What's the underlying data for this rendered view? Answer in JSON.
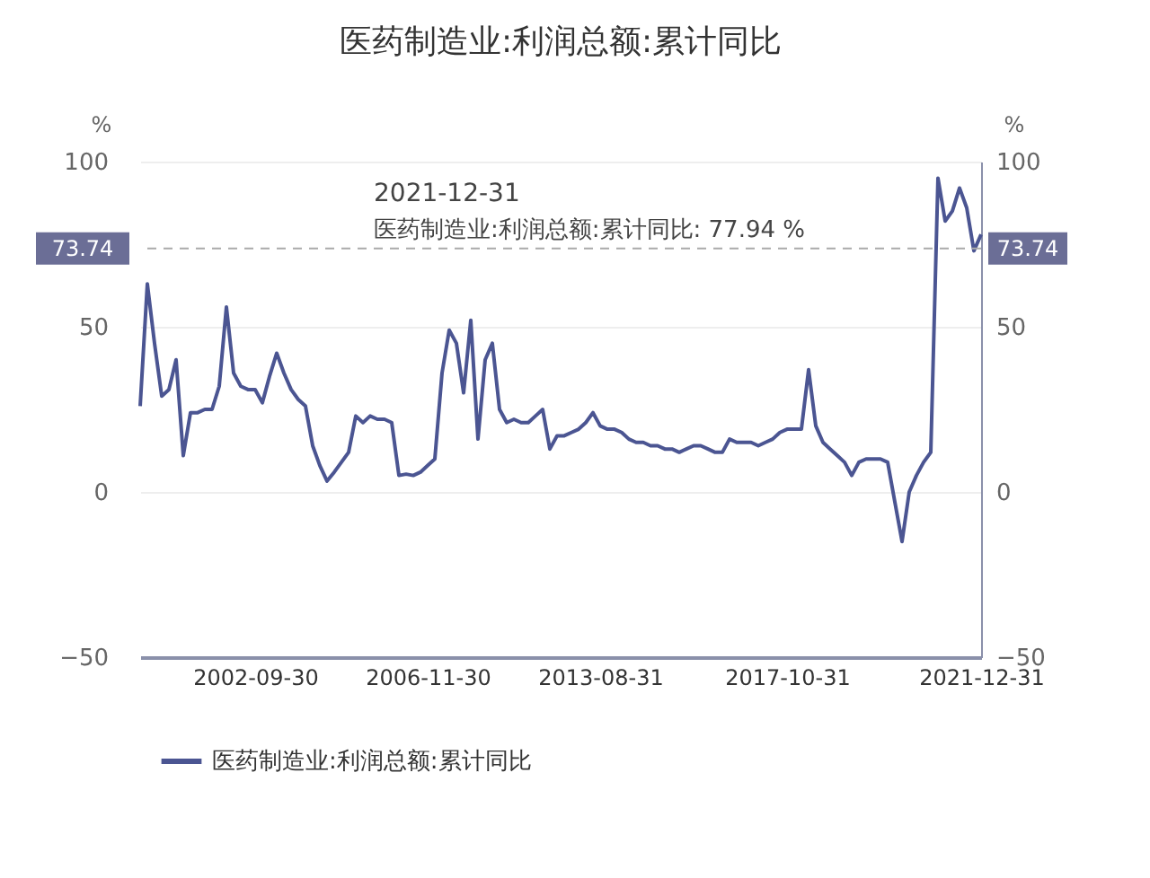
{
  "chart_data": {
    "type": "line",
    "title": "医药制造业:利润总额:累计同比",
    "categories": [
      null,
      null,
      null,
      null,
      null,
      null,
      null,
      null,
      null,
      null,
      null,
      null,
      null,
      null,
      null,
      null,
      "2002-09-30",
      null,
      null,
      null,
      null,
      null,
      null,
      null,
      null,
      null,
      null,
      null,
      null,
      null,
      null,
      null,
      null,
      null,
      null,
      null,
      null,
      null,
      null,
      null,
      "2006-11-30",
      null,
      null,
      null,
      null,
      null,
      null,
      null,
      null,
      null,
      null,
      null,
      null,
      null,
      null,
      null,
      null,
      null,
      null,
      null,
      null,
      null,
      null,
      null,
      "2013-08-31",
      null,
      null,
      null,
      null,
      null,
      null,
      null,
      null,
      null,
      null,
      null,
      null,
      null,
      null,
      null,
      null,
      null,
      null,
      null,
      null,
      null,
      null,
      null,
      null,
      null,
      "2017-10-31",
      null,
      null,
      null,
      null,
      null,
      null,
      null,
      null,
      null,
      null,
      null,
      null,
      null,
      null,
      null,
      null,
      null,
      null,
      null,
      null,
      null,
      null,
      null,
      null,
      null,
      null,
      "2021-12-31"
    ],
    "series": [
      {
        "name": "医药制造业:利润总额:累计同比",
        "color": "#4b5592",
        "values": [
          26,
          63,
          45,
          29,
          31,
          40,
          11,
          24,
          24,
          25,
          25,
          32,
          56,
          36,
          32,
          31,
          31,
          27,
          35,
          42,
          36,
          31,
          28,
          26,
          14,
          8,
          3.3,
          6,
          9,
          12,
          23,
          21,
          23,
          22,
          22,
          21,
          5,
          5.4,
          5,
          6,
          8,
          10,
          36,
          49,
          45,
          30,
          52,
          16,
          40,
          45,
          25,
          21,
          22,
          21,
          21,
          23,
          25,
          13,
          17,
          17,
          18,
          19,
          21,
          24,
          20,
          19,
          19,
          18,
          16,
          15,
          15,
          14,
          14,
          13,
          13,
          12,
          13,
          14,
          14,
          13,
          12,
          12,
          16,
          15,
          15,
          15,
          14,
          15,
          16,
          18,
          19,
          19,
          19,
          37,
          20,
          15,
          13,
          11,
          9,
          5,
          9,
          10,
          10,
          10,
          9,
          -3,
          -15,
          0,
          5,
          9,
          12,
          95,
          82,
          85,
          92,
          86,
          73,
          77.94
        ]
      }
    ],
    "ylabel": "%",
    "y2label": "%",
    "ylim": [
      -50,
      100
    ],
    "yticks": [
      -50,
      0,
      50,
      100
    ],
    "y2lim": [
      -50,
      100
    ],
    "y2ticks": [
      -50,
      0,
      50,
      100
    ],
    "ref_lines": [
      {
        "axis": "y2",
        "value": 73.74,
        "label": "73.74",
        "color": "#aaaaaa",
        "line_style": "dashed"
      }
    ],
    "annotations": [
      "2021-12-31",
      "医药制造业:利润总额:累计同比:  77.94 %"
    ],
    "grid": "y",
    "legend": "bottom",
    "line_style": "solid",
    "marker": "none"
  }
}
